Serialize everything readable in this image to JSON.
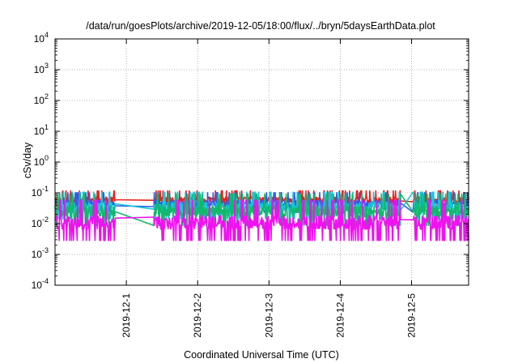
{
  "chart_data": {
    "type": "line",
    "title": "/data/run/goesPlots/archive/2019-12-05/18:00/flux/../bryn/5daysEarthData.plot",
    "xlabel": "Coordinated Universal Time (UTC)",
    "ylabel": "cSv/day",
    "yscale": "log",
    "ylim_exp": [
      -4,
      4
    ],
    "y_ticks": [
      {
        "base": "10",
        "exp": "-4",
        "value_exp": -4
      },
      {
        "base": "10",
        "exp": "-3",
        "value_exp": -3
      },
      {
        "base": "10",
        "exp": "-2",
        "value_exp": -2
      },
      {
        "base": "10",
        "exp": "-1",
        "value_exp": -1
      },
      {
        "base": "10",
        "exp": "0",
        "value_exp": 0
      },
      {
        "base": "10",
        "exp": "1",
        "value_exp": 1
      },
      {
        "base": "10",
        "exp": "2",
        "value_exp": 2
      },
      {
        "base": "10",
        "exp": "3",
        "value_exp": 3
      },
      {
        "base": "10",
        "exp": "4",
        "value_exp": 4
      }
    ],
    "xlim_days": [
      -1.0,
      4.8
    ],
    "x_ticks": [
      {
        "label": "2019-12-1",
        "day": 0
      },
      {
        "label": "2019-12-2",
        "day": 1
      },
      {
        "label": "2019-12-3",
        "day": 2
      },
      {
        "label": "2019-12-4",
        "day": 3
      },
      {
        "label": "2019-12-5",
        "day": 4
      }
    ],
    "grid": true,
    "gaps": [
      [
        -0.15,
        0.38
      ],
      [
        3.85,
        4.02
      ]
    ],
    "series": [
      {
        "color": "#e8201b",
        "base": 0.06,
        "spread": 0.18,
        "seed": 11
      },
      {
        "color": "#2a5fe6",
        "base": 0.045,
        "spread": 0.22,
        "seed": 23
      },
      {
        "color": "#18c6d4",
        "base": 0.035,
        "spread": 0.3,
        "seed": 37
      },
      {
        "color": "#13b86a",
        "base": 0.025,
        "spread": 0.35,
        "seed": 41
      },
      {
        "color": "#f011f0",
        "base": 0.011,
        "spread": 0.45,
        "seed": 59
      }
    ]
  }
}
